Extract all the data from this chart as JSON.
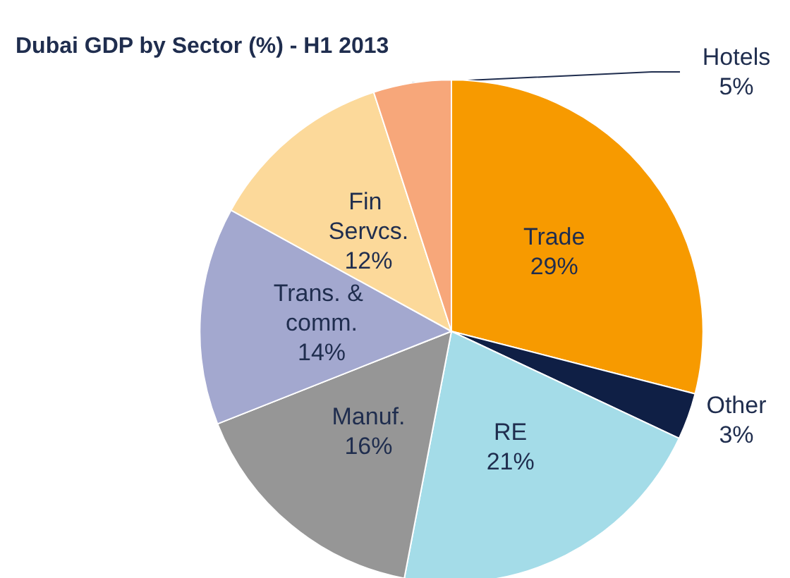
{
  "chart_data": {
    "type": "pie",
    "title": "Dubai GDP by Sector (%) - H1 2013",
    "categories": [
      "Trade",
      "Other",
      "RE",
      "Manuf.",
      "Trans. & comm.",
      "Fin Servcs.",
      "Hotels"
    ],
    "values": [
      29,
      3,
      21,
      16,
      14,
      12,
      5
    ],
    "value_labels": [
      "29%",
      "3%",
      "21%",
      "16%",
      "14%",
      "12%",
      "5%"
    ],
    "colors": [
      "#f79a00",
      "#0f1f45",
      "#a4dce8",
      "#969696",
      "#a3a8cf",
      "#fcd99a",
      "#f7a77a"
    ],
    "legend": false
  }
}
